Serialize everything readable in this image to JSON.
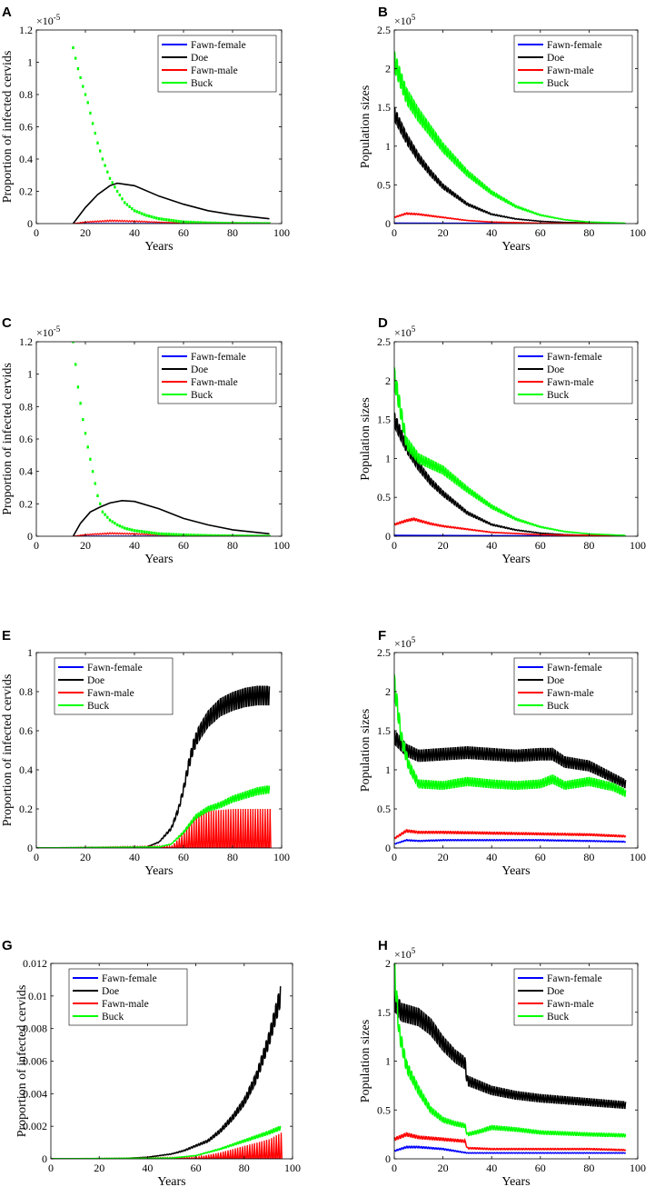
{
  "figure": {
    "series_names": [
      "Fawn-female",
      "Doe",
      "Fawn-male",
      "Buck"
    ],
    "series_colors": {
      "Fawn-female": "#0000ff",
      "Doe": "#000000",
      "Fawn-male": "#ff0000",
      "Buck": "#00ff00"
    }
  },
  "chart_data": [
    {
      "panel": "A",
      "type": "line",
      "xlabel": "Years",
      "ylabel": "Proportion of infected cervids",
      "xlim": [
        0,
        100
      ],
      "xticks": [
        0,
        20,
        40,
        60,
        80,
        100
      ],
      "ylim": [
        0,
        1.2
      ],
      "yticks": [
        0,
        0.2,
        0.4,
        0.6,
        0.8,
        1,
        1.2
      ],
      "exponent_base": "×10",
      "exponent_power": "-5",
      "legend": "top-right",
      "series": [
        {
          "name": "Fawn-female",
          "x": [
            15,
            95
          ],
          "values": [
            0,
            0
          ],
          "style": "line"
        },
        {
          "name": "Doe",
          "x": [
            15,
            20,
            25,
            30,
            33,
            40,
            50,
            60,
            70,
            80,
            95
          ],
          "values": [
            0,
            0.1,
            0.18,
            0.235,
            0.25,
            0.235,
            0.17,
            0.12,
            0.08,
            0.055,
            0.03
          ],
          "style": "line"
        },
        {
          "name": "Fawn-male",
          "x": [
            15,
            20,
            30,
            40,
            50,
            60,
            95
          ],
          "values": [
            0,
            0.012,
            0.022,
            0.018,
            0.01,
            0.005,
            0.001
          ],
          "style": "sawtooth"
        },
        {
          "name": "Buck",
          "x": [
            15,
            17,
            19,
            21,
            23,
            25,
            27,
            30,
            33,
            36,
            40,
            45,
            50,
            60,
            70,
            80,
            95
          ],
          "values": [
            1.09,
            0.96,
            0.85,
            0.75,
            0.62,
            0.5,
            0.4,
            0.28,
            0.2,
            0.13,
            0.08,
            0.05,
            0.03,
            0.01,
            0.004,
            0.001,
            0
          ],
          "style": "dotted"
        }
      ]
    },
    {
      "panel": "B",
      "type": "line",
      "xlabel": "Years",
      "ylabel": "Population sizes",
      "xlim": [
        0,
        100
      ],
      "xticks": [
        0,
        20,
        40,
        60,
        80,
        100
      ],
      "ylim": [
        0,
        2.5
      ],
      "yticks": [
        0,
        0.5,
        1,
        1.5,
        2,
        2.5
      ],
      "exponent_base": "×10",
      "exponent_power": "5",
      "legend": "top-right",
      "series": [
        {
          "name": "Fawn-female",
          "x": [
            0,
            95
          ],
          "values": [
            0.005,
            0.001
          ],
          "style": "line"
        },
        {
          "name": "Doe",
          "x": [
            0,
            5,
            10,
            15,
            20,
            30,
            40,
            50,
            60,
            70,
            80,
            95
          ],
          "values": [
            1.42,
            1.1,
            0.85,
            0.65,
            0.48,
            0.25,
            0.12,
            0.06,
            0.03,
            0.015,
            0.008,
            0.003
          ],
          "style": "band"
        },
        {
          "name": "Fawn-male",
          "x": [
            0,
            5,
            10,
            20,
            30,
            40,
            60,
            95
          ],
          "values": [
            0.08,
            0.13,
            0.12,
            0.08,
            0.04,
            0.02,
            0.005,
            0.001
          ],
          "style": "band"
        },
        {
          "name": "Buck",
          "x": [
            0,
            5,
            10,
            20,
            30,
            40,
            50,
            60,
            70,
            80,
            95
          ],
          "values": [
            2.1,
            1.65,
            1.4,
            0.98,
            0.65,
            0.4,
            0.22,
            0.11,
            0.05,
            0.02,
            0.005
          ],
          "style": "band"
        }
      ]
    },
    {
      "panel": "C",
      "type": "line",
      "xlabel": "Years",
      "ylabel": "Proportion of infected cervids",
      "xlim": [
        0,
        100
      ],
      "xticks": [
        0,
        20,
        40,
        60,
        80,
        100
      ],
      "ylim": [
        0,
        1.2
      ],
      "yticks": [
        0,
        0.2,
        0.4,
        0.6,
        0.8,
        1,
        1.2
      ],
      "exponent_base": "×10",
      "exponent_power": "-5",
      "legend": "top-right",
      "series": [
        {
          "name": "Fawn-female",
          "x": [
            15,
            95
          ],
          "values": [
            0,
            0
          ],
          "style": "line"
        },
        {
          "name": "Doe",
          "x": [
            15,
            18,
            22,
            26,
            30,
            35,
            40,
            50,
            60,
            70,
            80,
            95
          ],
          "values": [
            0,
            0.08,
            0.15,
            0.18,
            0.205,
            0.22,
            0.215,
            0.17,
            0.11,
            0.07,
            0.04,
            0.015
          ],
          "style": "line"
        },
        {
          "name": "Fawn-male",
          "x": [
            15,
            20,
            30,
            40,
            50,
            60,
            95
          ],
          "values": [
            0,
            0.012,
            0.022,
            0.018,
            0.01,
            0.005,
            0.001
          ],
          "style": "sawtooth"
        },
        {
          "name": "Buck",
          "x": [
            15,
            17,
            19,
            21,
            23,
            25,
            27,
            30,
            33,
            36,
            40,
            45,
            50,
            60,
            70,
            80,
            95
          ],
          "values": [
            1.2,
            0.92,
            0.72,
            0.55,
            0.4,
            0.25,
            0.15,
            0.1,
            0.07,
            0.05,
            0.035,
            0.025,
            0.015,
            0.008,
            0.004,
            0.002,
            0
          ],
          "style": "dotted"
        }
      ]
    },
    {
      "panel": "D",
      "type": "line",
      "xlabel": "Years",
      "ylabel": "Population sizes",
      "xlim": [
        0,
        100
      ],
      "xticks": [
        0,
        20,
        40,
        60,
        80,
        100
      ],
      "ylim": [
        0,
        2.5
      ],
      "yticks": [
        0,
        0.5,
        1,
        1.5,
        2,
        2.5
      ],
      "exponent_base": "×10",
      "exponent_power": "5",
      "legend": "top-right",
      "series": [
        {
          "name": "Fawn-female",
          "x": [
            0,
            95
          ],
          "values": [
            0.01,
            0.002
          ],
          "style": "line"
        },
        {
          "name": "Doe",
          "x": [
            0,
            5,
            10,
            15,
            20,
            30,
            40,
            50,
            60,
            70,
            80,
            95
          ],
          "values": [
            1.5,
            1.15,
            0.9,
            0.7,
            0.55,
            0.3,
            0.15,
            0.08,
            0.04,
            0.02,
            0.01,
            0.004
          ],
          "style": "band"
        },
        {
          "name": "Fawn-male",
          "x": [
            0,
            5,
            8,
            15,
            20,
            30,
            40,
            60,
            95
          ],
          "values": [
            0.15,
            0.2,
            0.22,
            0.16,
            0.13,
            0.09,
            0.05,
            0.02,
            0.005
          ],
          "style": "band"
        },
        {
          "name": "Buck",
          "x": [
            0,
            3,
            5,
            10,
            20,
            30,
            40,
            50,
            60,
            70,
            80,
            95
          ],
          "values": [
            2.05,
            1.55,
            1.2,
            1.0,
            0.85,
            0.6,
            0.38,
            0.22,
            0.12,
            0.06,
            0.03,
            0.01
          ],
          "style": "band"
        }
      ]
    },
    {
      "panel": "E",
      "type": "line",
      "xlabel": "Years",
      "ylabel": "Proportion of infected cervids",
      "xlim": [
        0,
        100
      ],
      "xticks": [
        0,
        20,
        40,
        60,
        80,
        100
      ],
      "ylim": [
        0,
        1
      ],
      "yticks": [
        0,
        0.2,
        0.4,
        0.6,
        0.8,
        1
      ],
      "exponent_base": "",
      "exponent_power": "",
      "legend": "top-left",
      "series": [
        {
          "name": "Fawn-female",
          "x": [
            0,
            95
          ],
          "values": [
            0,
            0
          ],
          "style": "line"
        },
        {
          "name": "Doe",
          "x": [
            0,
            45,
            50,
            55,
            58,
            60,
            62,
            64,
            66,
            70,
            75,
            80,
            85,
            90,
            95
          ],
          "values": [
            0,
            0.005,
            0.03,
            0.1,
            0.2,
            0.3,
            0.42,
            0.52,
            0.58,
            0.66,
            0.72,
            0.75,
            0.77,
            0.78,
            0.78
          ],
          "style": "band"
        },
        {
          "name": "Fawn-male",
          "x": [
            0,
            55,
            60,
            65,
            70,
            80,
            95
          ],
          "values": [
            0,
            0.01,
            0.08,
            0.16,
            0.19,
            0.2,
            0.2
          ],
          "style": "spikes"
        },
        {
          "name": "Buck",
          "x": [
            0,
            50,
            55,
            60,
            65,
            70,
            75,
            80,
            85,
            90,
            95
          ],
          "values": [
            0,
            0.005,
            0.02,
            0.08,
            0.16,
            0.2,
            0.22,
            0.25,
            0.27,
            0.29,
            0.3
          ],
          "style": "band"
        }
      ]
    },
    {
      "panel": "F",
      "type": "line",
      "xlabel": "Years",
      "ylabel": "Population sizes",
      "xlim": [
        0,
        100
      ],
      "xticks": [
        0,
        20,
        40,
        60,
        80,
        100
      ],
      "ylim": [
        0,
        2.5
      ],
      "yticks": [
        0,
        0.5,
        1,
        1.5,
        2,
        2.5
      ],
      "exponent_base": "×10",
      "exponent_power": "5",
      "legend": "top-right",
      "series": [
        {
          "name": "Fawn-female",
          "x": [
            0,
            5,
            10,
            20,
            40,
            60,
            80,
            95
          ],
          "values": [
            0.05,
            0.1,
            0.09,
            0.1,
            0.1,
            0.1,
            0.09,
            0.08
          ],
          "style": "band"
        },
        {
          "name": "Doe",
          "x": [
            0,
            5,
            10,
            20,
            30,
            40,
            50,
            60,
            65,
            70,
            80,
            95
          ],
          "values": [
            1.42,
            1.25,
            1.18,
            1.2,
            1.22,
            1.2,
            1.18,
            1.2,
            1.2,
            1.1,
            1.05,
            0.82
          ],
          "style": "band"
        },
        {
          "name": "Fawn-male",
          "x": [
            0,
            5,
            10,
            20,
            40,
            60,
            80,
            95
          ],
          "values": [
            0.12,
            0.22,
            0.2,
            0.2,
            0.19,
            0.18,
            0.17,
            0.15
          ],
          "style": "band"
        },
        {
          "name": "Buck",
          "x": [
            0,
            3,
            6,
            10,
            20,
            30,
            40,
            50,
            60,
            65,
            70,
            80,
            90,
            95
          ],
          "values": [
            2.1,
            1.4,
            1.05,
            0.82,
            0.8,
            0.85,
            0.82,
            0.8,
            0.82,
            0.88,
            0.8,
            0.85,
            0.78,
            0.7
          ],
          "style": "band"
        }
      ]
    },
    {
      "panel": "G",
      "type": "line",
      "xlabel": "Years",
      "ylabel": "Proportion of infected cervids",
      "xlim": [
        0,
        100
      ],
      "xticks": [
        0,
        20,
        40,
        60,
        80,
        100
      ],
      "ylim": [
        0,
        0.012
      ],
      "yticks": [
        0,
        0.002,
        0.004,
        0.006,
        0.008,
        0.01,
        0.012
      ],
      "exponent_base": "",
      "exponent_power": "",
      "legend": "top-left",
      "series": [
        {
          "name": "Fawn-female",
          "x": [
            0,
            95
          ],
          "values": [
            0,
            0
          ],
          "style": "line"
        },
        {
          "name": "Doe",
          "x": [
            0,
            30,
            40,
            50,
            55,
            60,
            65,
            70,
            75,
            80,
            85,
            90,
            95
          ],
          "values": [
            0,
            2e-05,
            0.0001,
            0.0003,
            0.0005,
            0.0008,
            0.0011,
            0.0017,
            0.0025,
            0.0035,
            0.005,
            0.0072,
            0.01
          ],
          "style": "band"
        },
        {
          "name": "Fawn-male",
          "x": [
            0,
            60,
            70,
            80,
            90,
            95
          ],
          "values": [
            0,
            0.0001,
            0.0004,
            0.0008,
            0.0012,
            0.0016
          ],
          "style": "spikes"
        },
        {
          "name": "Buck",
          "x": [
            0,
            50,
            60,
            70,
            80,
            90,
            95
          ],
          "values": [
            0,
            5e-05,
            0.0002,
            0.0006,
            0.0011,
            0.0016,
            0.0019
          ],
          "style": "band"
        }
      ]
    },
    {
      "panel": "H",
      "type": "line",
      "xlabel": "Years",
      "ylabel": "Population sizes",
      "xlim": [
        0,
        100
      ],
      "xticks": [
        0,
        20,
        40,
        60,
        80,
        100
      ],
      "ylim": [
        0,
        2
      ],
      "yticks": [
        0,
        0.5,
        1,
        1.5,
        2
      ],
      "exponent_base": "×10",
      "exponent_power": "5",
      "legend": "top-right",
      "series": [
        {
          "name": "Fawn-female",
          "x": [
            0,
            5,
            10,
            20,
            30,
            40,
            60,
            80,
            95
          ],
          "values": [
            0.08,
            0.12,
            0.12,
            0.1,
            0.06,
            0.06,
            0.06,
            0.06,
            0.06
          ],
          "style": "band"
        },
        {
          "name": "Doe",
          "x": [
            0,
            3,
            10,
            15,
            20,
            25,
            29,
            30,
            40,
            50,
            60,
            70,
            80,
            90,
            95
          ],
          "values": [
            1.62,
            1.5,
            1.45,
            1.35,
            1.18,
            1.05,
            0.98,
            0.8,
            0.7,
            0.65,
            0.62,
            0.6,
            0.58,
            0.56,
            0.55
          ],
          "style": "band"
        },
        {
          "name": "Fawn-male",
          "x": [
            0,
            5,
            10,
            20,
            29,
            30,
            40,
            60,
            80,
            95
          ],
          "values": [
            0.2,
            0.25,
            0.22,
            0.2,
            0.18,
            0.11,
            0.1,
            0.1,
            0.1,
            0.09
          ],
          "style": "band"
        },
        {
          "name": "Buck",
          "x": [
            0,
            2,
            5,
            10,
            15,
            20,
            25,
            29,
            30,
            35,
            40,
            50,
            60,
            70,
            80,
            95
          ],
          "values": [
            1.95,
            1.3,
            0.95,
            0.7,
            0.5,
            0.4,
            0.36,
            0.34,
            0.25,
            0.28,
            0.32,
            0.3,
            0.27,
            0.26,
            0.25,
            0.24
          ],
          "style": "band"
        }
      ]
    }
  ]
}
